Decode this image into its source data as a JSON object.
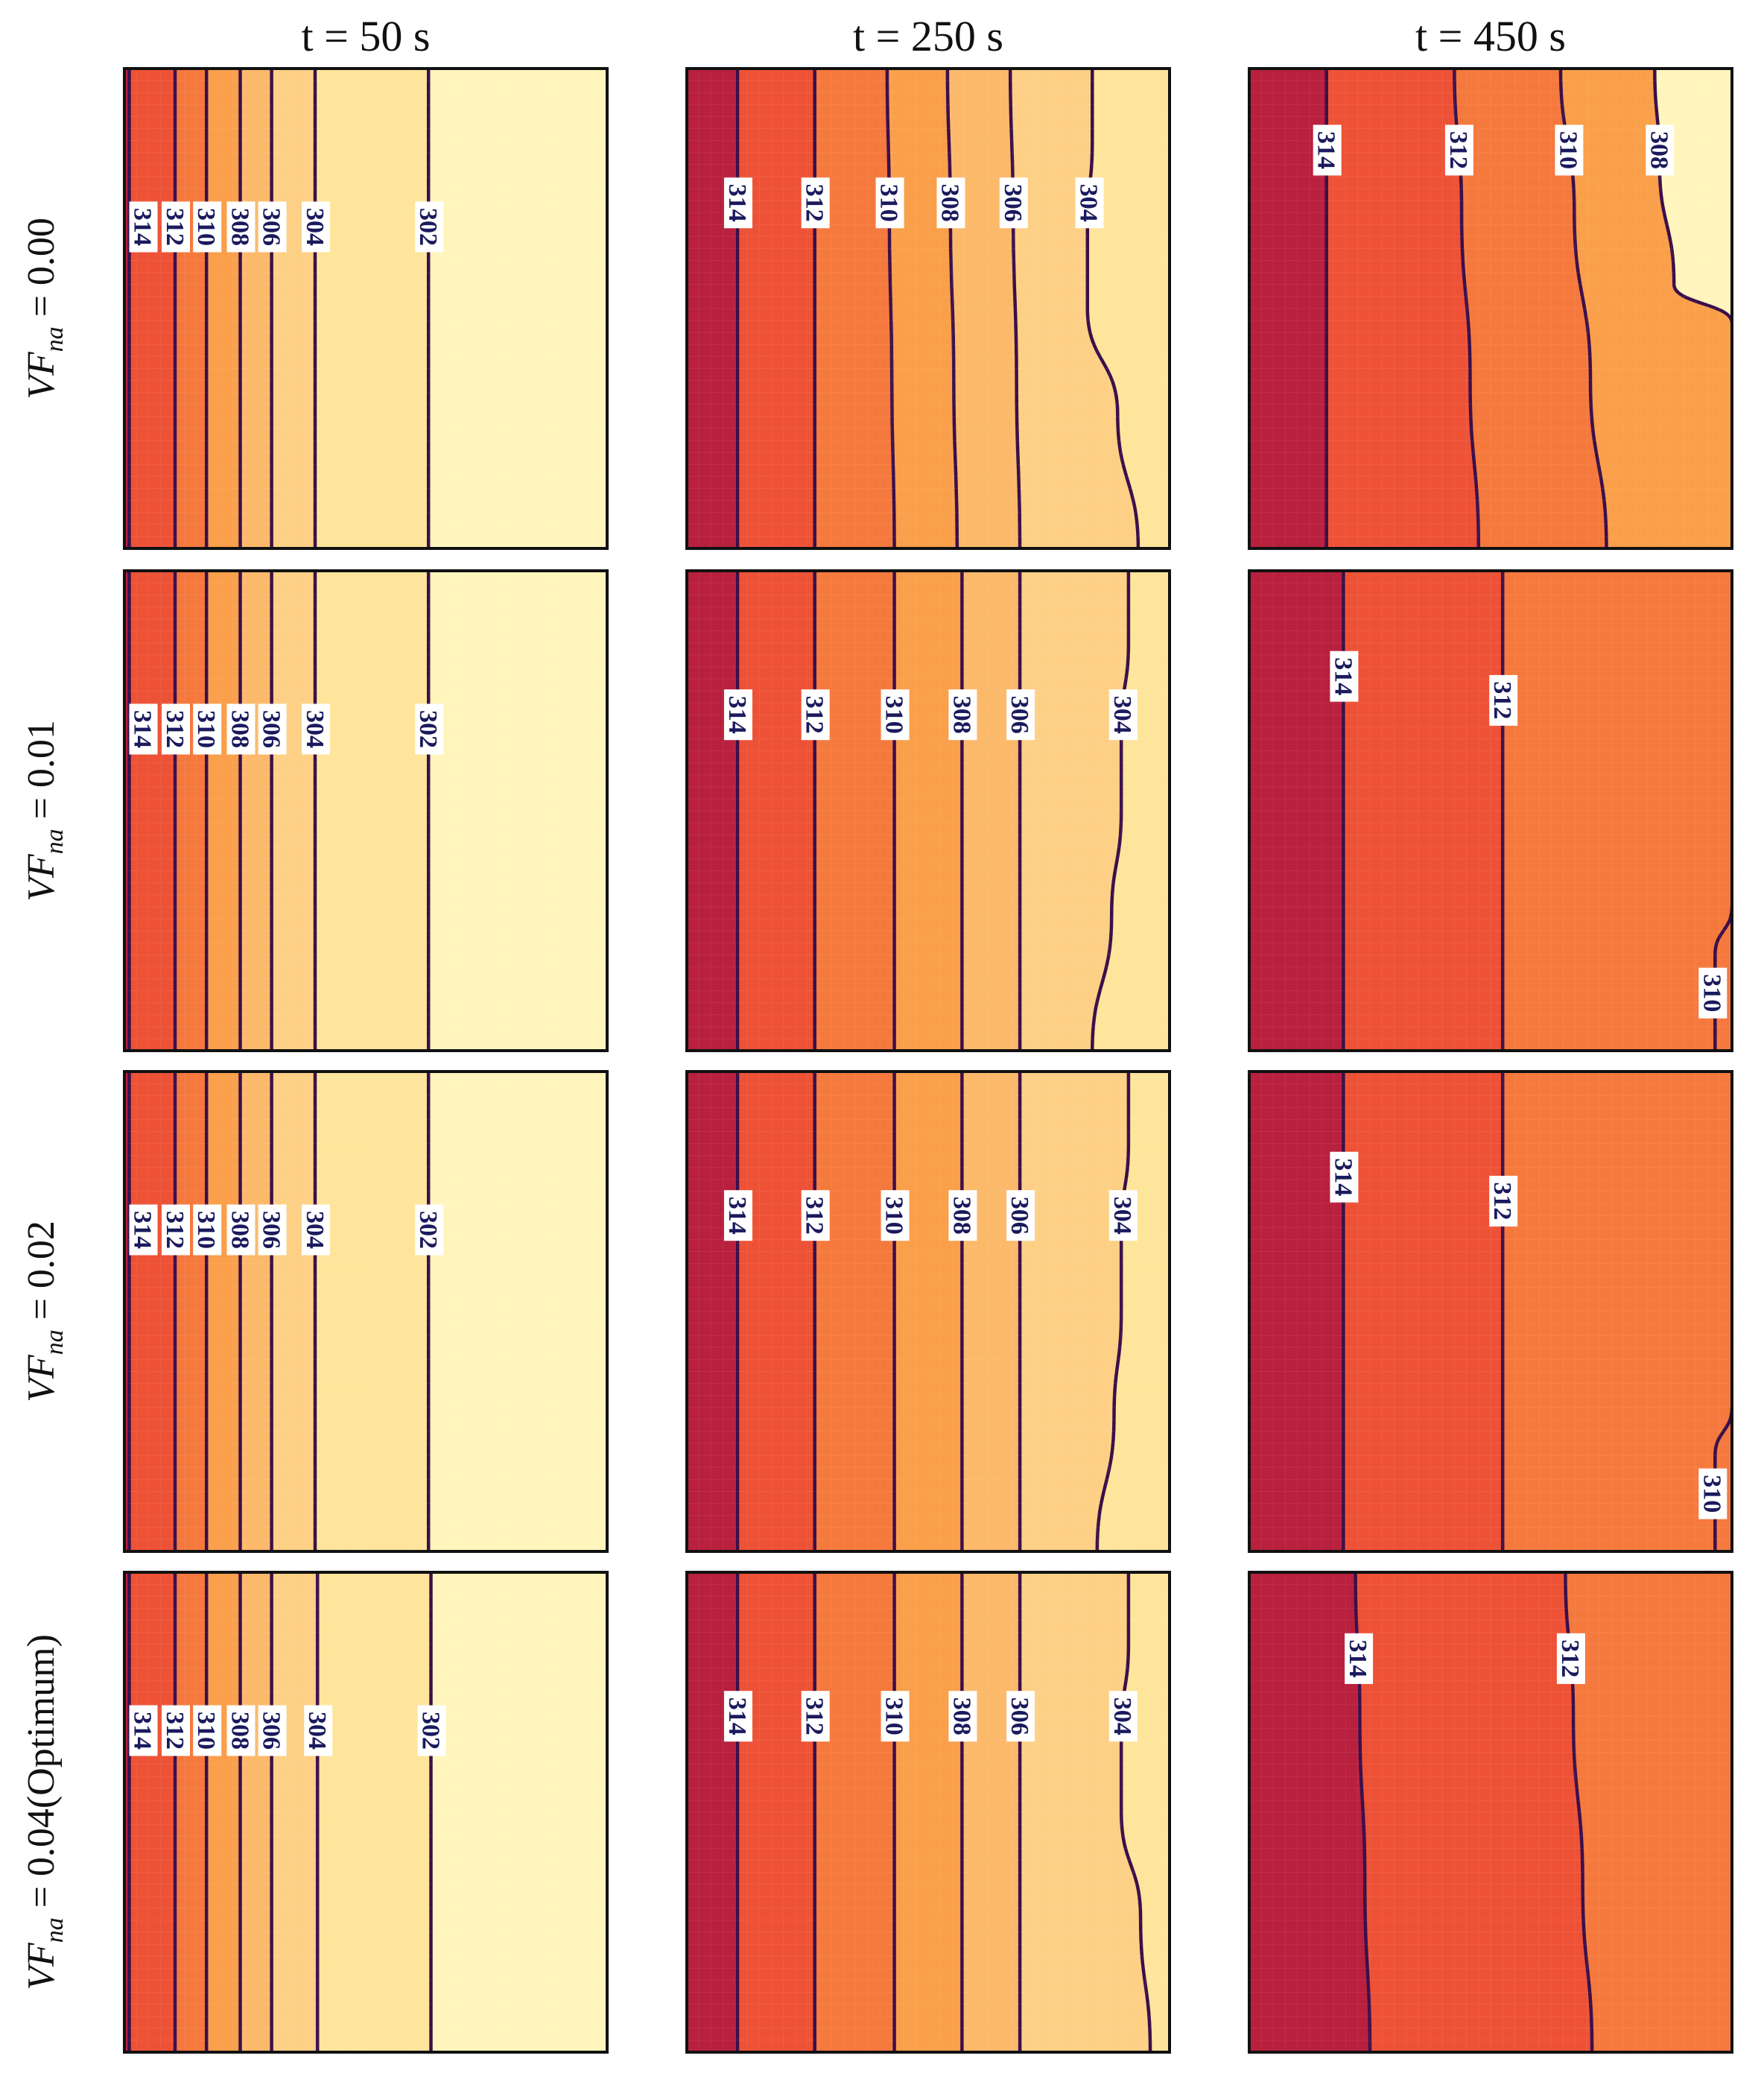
{
  "chart_data": {
    "type": "contour",
    "column_titles": [
      "t = 50 s",
      "t = 250 s",
      "t = 450 s"
    ],
    "row_labels": [
      "VF_na = 0.00",
      "VF_na = 0.01",
      "VF_na = 0.02",
      "VF_na = 0.04 (Optimum)"
    ],
    "row_label_parts": [
      {
        "pre": "VF",
        "sub": "na",
        "post": " = 0.00"
      },
      {
        "pre": "VF",
        "sub": "na",
        "post": " = 0.01"
      },
      {
        "pre": "VF",
        "sub": "na",
        "post": " = 0.02"
      },
      {
        "pre": "VF",
        "sub": "na",
        "post": " = 0.04(Optimum)"
      }
    ],
    "colormap": {
      "316": "#b8203e",
      "314": "#d9333a",
      "312": "#ee5236",
      "310": "#f5793d",
      "308": "#fa9f4a",
      "306": "#fcb96a",
      "304": "#fdd085",
      "302": "#fee59b",
      "300": "#fff5bd"
    },
    "line_color": "#3b0f4a",
    "label_color": "#1a1a5e",
    "panels": [
      {
        "row": 0,
        "col": 0,
        "levels": [
          {
            "value": 314,
            "label": "314",
            "x": 0.01
          },
          {
            "value": 312,
            "label": "312",
            "x": 0.105
          },
          {
            "value": 310,
            "label": "310",
            "x": 0.17
          },
          {
            "value": 308,
            "label": "308",
            "x": 0.24
          },
          {
            "value": 306,
            "label": "306",
            "x": 0.305
          },
          {
            "value": 304,
            "label": "304",
            "x": 0.395
          },
          {
            "value": 302,
            "label": "302",
            "x": 0.63
          }
        ],
        "label_y": 0.33
      },
      {
        "row": 0,
        "col": 1,
        "levels": [
          {
            "value": 314,
            "label": "314",
            "x": 0.105
          },
          {
            "value": 312,
            "label": "312",
            "x": 0.265
          },
          {
            "value": 310,
            "label": "310",
            "x": 0.415,
            "x_bottom": 0.43
          },
          {
            "value": 308,
            "label": "308",
            "x": 0.54,
            "x_bottom": 0.56
          },
          {
            "value": 306,
            "label": "306",
            "x": 0.67,
            "x_bottom": 0.69
          },
          {
            "value": 304,
            "label": "304",
            "x": 0.84,
            "x_bottom": 0.935,
            "bulge": 0.83
          }
        ],
        "label_y": 0.28
      },
      {
        "row": 0,
        "col": 2,
        "levels": [
          {
            "value": 314,
            "label": "314",
            "x": 0.16
          },
          {
            "value": 312,
            "label": "312",
            "x": 0.425,
            "x_bottom": 0.475
          },
          {
            "value": 310,
            "label": "310",
            "x": 0.645,
            "x_bottom": 0.74
          },
          {
            "value": 308,
            "label": "308",
            "x": 0.84,
            "closed_corner": true
          }
        ],
        "label_y": 0.17
      },
      {
        "row": 1,
        "col": 0,
        "levels": [
          {
            "value": 314,
            "label": "314",
            "x": 0.01
          },
          {
            "value": 312,
            "label": "312",
            "x": 0.105
          },
          {
            "value": 310,
            "label": "310",
            "x": 0.17
          },
          {
            "value": 308,
            "label": "308",
            "x": 0.24
          },
          {
            "value": 306,
            "label": "306",
            "x": 0.305
          },
          {
            "value": 304,
            "label": "304",
            "x": 0.395
          },
          {
            "value": 302,
            "label": "302",
            "x": 0.63
          }
        ],
        "label_y": 0.33
      },
      {
        "row": 1,
        "col": 1,
        "levels": [
          {
            "value": 314,
            "label": "314",
            "x": 0.105
          },
          {
            "value": 312,
            "label": "312",
            "x": 0.265
          },
          {
            "value": 310,
            "label": "310",
            "x": 0.43
          },
          {
            "value": 308,
            "label": "308",
            "x": 0.57
          },
          {
            "value": 306,
            "label": "306",
            "x": 0.69
          },
          {
            "value": 304,
            "label": "304",
            "x": 0.915,
            "x_bottom": 0.84,
            "bulge": 0.9
          }
        ],
        "label_y": 0.3
      },
      {
        "row": 1,
        "col": 2,
        "levels": [
          {
            "value": 314,
            "label": "314",
            "x": 0.195
          },
          {
            "value": 312,
            "label": "312",
            "x": 0.525
          },
          {
            "value": 310,
            "label": "310",
            "x": 0.965,
            "corner_bottom": true
          }
        ],
        "label_y": 0.22,
        "label_y2": 0.27
      },
      {
        "row": 2,
        "col": 0,
        "levels": [
          {
            "value": 314,
            "label": "314",
            "x": 0.01
          },
          {
            "value": 312,
            "label": "312",
            "x": 0.105
          },
          {
            "value": 310,
            "label": "310",
            "x": 0.17
          },
          {
            "value": 308,
            "label": "308",
            "x": 0.24
          },
          {
            "value": 306,
            "label": "306",
            "x": 0.305
          },
          {
            "value": 304,
            "label": "304",
            "x": 0.395
          },
          {
            "value": 302,
            "label": "302",
            "x": 0.63
          }
        ],
        "label_y": 0.33
      },
      {
        "row": 2,
        "col": 1,
        "levels": [
          {
            "value": 314,
            "label": "314",
            "x": 0.105
          },
          {
            "value": 312,
            "label": "312",
            "x": 0.265
          },
          {
            "value": 310,
            "label": "310",
            "x": 0.43
          },
          {
            "value": 308,
            "label": "308",
            "x": 0.57
          },
          {
            "value": 306,
            "label": "306",
            "x": 0.69
          },
          {
            "value": 304,
            "label": "304",
            "x": 0.915,
            "x_bottom": 0.85,
            "bulge": 0.9
          }
        ],
        "label_y": 0.3
      },
      {
        "row": 2,
        "col": 2,
        "levels": [
          {
            "value": 314,
            "label": "314",
            "x": 0.195
          },
          {
            "value": 312,
            "label": "312",
            "x": 0.525
          },
          {
            "value": 310,
            "label": "310",
            "x": 0.965,
            "corner_bottom": true
          }
        ],
        "label_y": 0.22,
        "label_y2": 0.27
      },
      {
        "row": 3,
        "col": 0,
        "levels": [
          {
            "value": 314,
            "label": "314",
            "x": 0.01
          },
          {
            "value": 312,
            "label": "312",
            "x": 0.105
          },
          {
            "value": 310,
            "label": "310",
            "x": 0.17
          },
          {
            "value": 308,
            "label": "308",
            "x": 0.24
          },
          {
            "value": 306,
            "label": "306",
            "x": 0.305
          },
          {
            "value": 304,
            "label": "304",
            "x": 0.4
          },
          {
            "value": 302,
            "label": "302",
            "x": 0.635
          }
        ],
        "label_y": 0.33
      },
      {
        "row": 3,
        "col": 1,
        "levels": [
          {
            "value": 314,
            "label": "314",
            "x": 0.105
          },
          {
            "value": 312,
            "label": "312",
            "x": 0.265
          },
          {
            "value": 310,
            "label": "310",
            "x": 0.43
          },
          {
            "value": 308,
            "label": "308",
            "x": 0.57
          },
          {
            "value": 306,
            "label": "306",
            "x": 0.69
          },
          {
            "value": 304,
            "label": "304",
            "x": 0.915,
            "x_bottom": 0.96,
            "bulge": 0.9
          }
        ],
        "label_y": 0.3
      },
      {
        "row": 3,
        "col": 2,
        "levels": [
          {
            "value": 314,
            "label": "314",
            "x": 0.22,
            "x_bottom": 0.25
          },
          {
            "value": 312,
            "label": "312",
            "x": 0.655,
            "x_bottom": 0.71
          }
        ],
        "label_y": 0.18
      }
    ]
  }
}
